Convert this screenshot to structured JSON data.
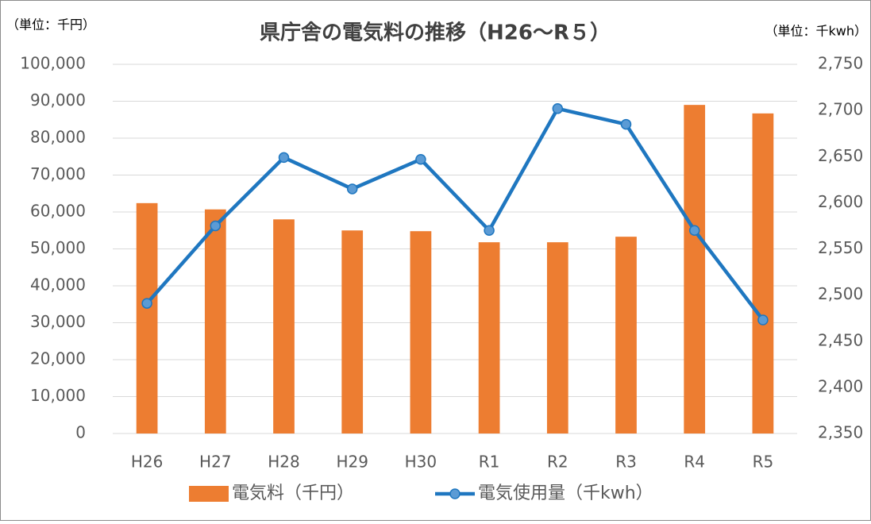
{
  "chart_data": {
    "type": "bar_line",
    "title": "県庁舎の電気料の推移（H26～R５）",
    "y_unit": "（単位：千円）",
    "y2_unit": "（単位：千kwh）",
    "categories": [
      "H26",
      "H27",
      "H28",
      "H29",
      "H30",
      "R1",
      "R2",
      "R3",
      "R4",
      "R5"
    ],
    "series": [
      {
        "name": "電気料（千円）",
        "type": "bar",
        "color": "#ed7d31",
        "axis": "y",
        "values": [
          62400,
          60700,
          58000,
          55000,
          54800,
          51800,
          51800,
          53300,
          89000,
          86700
        ]
      },
      {
        "name": "電気使用量（千kwh）",
        "type": "line",
        "color": "#1f77c0",
        "axis": "y2",
        "values": [
          2491,
          2575,
          2649,
          2615,
          2647,
          2570,
          2702,
          2685,
          2570,
          2473
        ]
      }
    ],
    "ylim": [
      0,
      100000
    ],
    "yticks": [
      0,
      {
        "value": 10000,
        "label": "10,000"
      },
      {
        "value": 20000,
        "label": "20,000"
      },
      {
        "value": 30000,
        "label": "30,000"
      },
      {
        "value": 40000,
        "label": "40,000"
      },
      {
        "value": 50000,
        "label": "50,000"
      },
      {
        "value": 60000,
        "label": "60,000"
      },
      {
        "value": 70000,
        "label": "70,000"
      },
      {
        "value": 80000,
        "label": "80,000"
      },
      {
        "value": 90000,
        "label": "90,000"
      },
      {
        "value": 100000,
        "label": "100,000"
      }
    ],
    "y2lim": [
      2350,
      2750
    ],
    "y2ticks": [
      {
        "value": 2350,
        "label": "2,350"
      },
      {
        "value": 2400,
        "label": "2,400"
      },
      {
        "value": 2450,
        "label": "2,450"
      },
      {
        "value": 2500,
        "label": "2,500"
      },
      {
        "value": 2550,
        "label": "2,550"
      },
      {
        "value": 2600,
        "label": "2,600"
      },
      {
        "value": 2650,
        "label": "2,650"
      },
      {
        "value": 2700,
        "label": "2,700"
      },
      {
        "value": 2750,
        "label": "2,750"
      }
    ],
    "grid": true,
    "legend": "bottom"
  }
}
